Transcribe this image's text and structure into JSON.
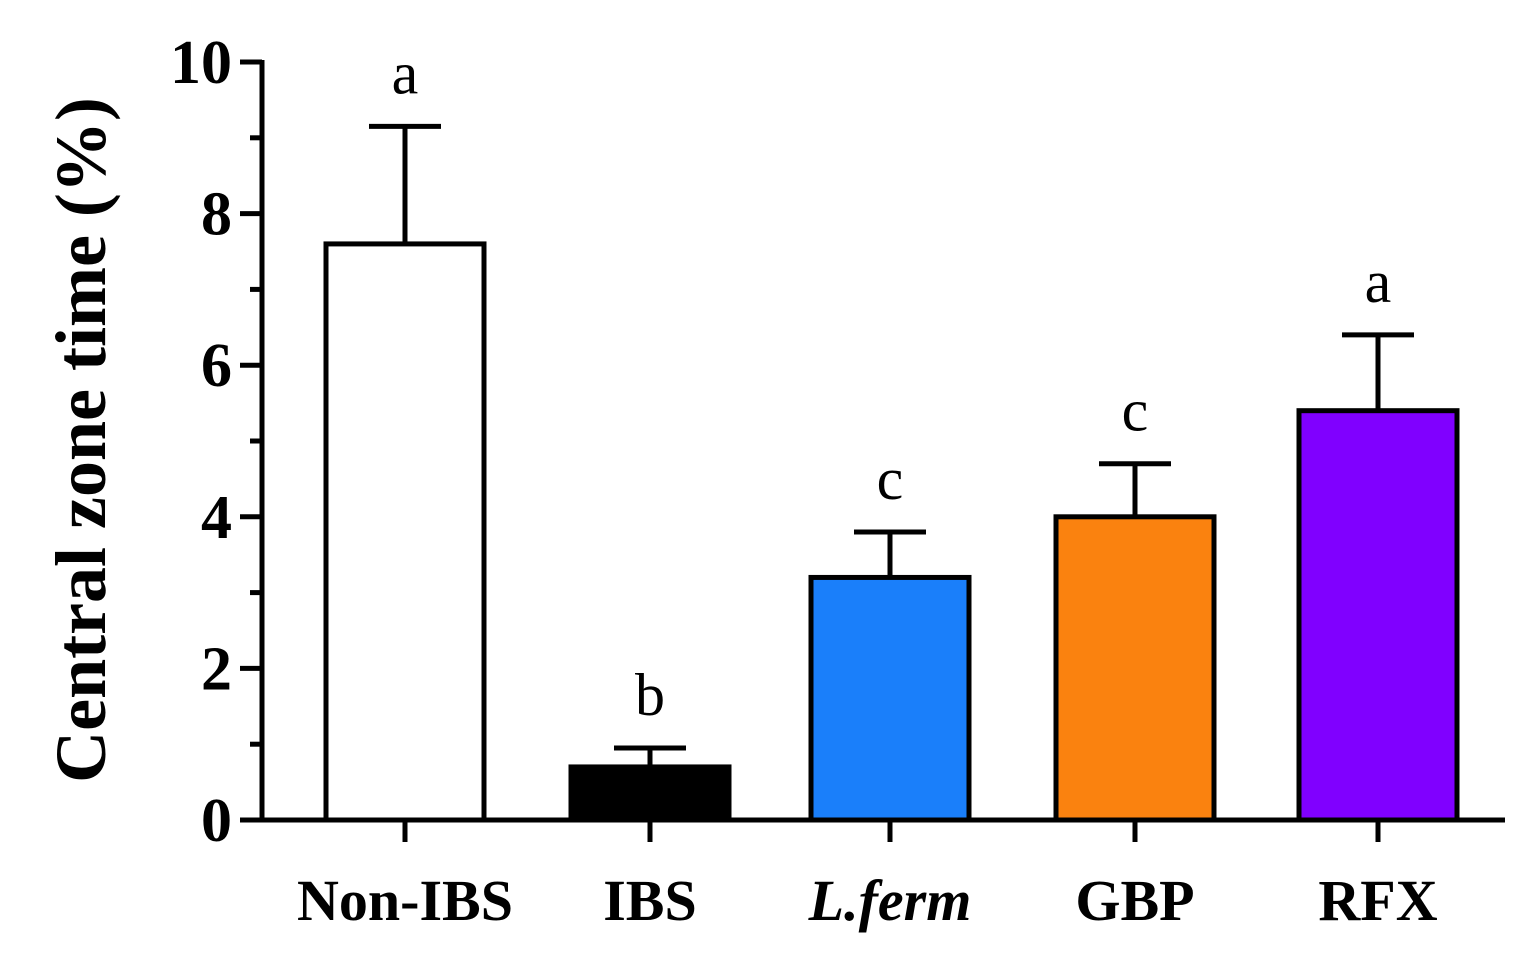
{
  "chart_data": {
    "type": "bar",
    "title": "",
    "xlabel": "",
    "ylabel": "Central zone time (%)",
    "ylim": [
      0,
      10
    ],
    "yticks": [
      0,
      2,
      4,
      6,
      8,
      10
    ],
    "ytick_labels": [
      "0",
      "2",
      "4",
      "6",
      "8",
      "10"
    ],
    "grid": false,
    "legend": "none",
    "categories": [
      "Non-IBS",
      "IBS",
      "L.ferm",
      "GBP",
      "RFX"
    ],
    "italic_categories": [
      "L.ferm"
    ],
    "values": [
      7.6,
      0.7,
      3.2,
      4.0,
      5.4
    ],
    "errors": [
      1.55,
      0.25,
      0.6,
      0.7,
      1.0
    ],
    "significance_letters": [
      "a",
      "b",
      "c",
      "c",
      "a"
    ],
    "colors": [
      "#ffffff",
      "#000000",
      "#1a7ffa",
      "#fa820f",
      "#8000ff"
    ]
  }
}
